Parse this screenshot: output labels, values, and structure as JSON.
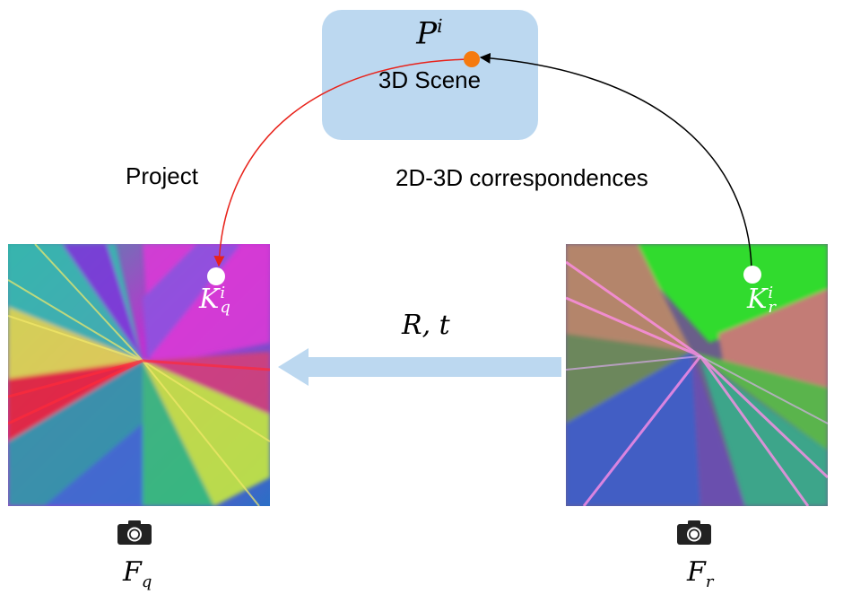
{
  "scene": {
    "label": "3D Scene",
    "point_symbol": "P",
    "point_index": "i"
  },
  "labels": {
    "project": "Project",
    "correspondences": "2D-3D correspondences",
    "pose": "R, t"
  },
  "query": {
    "keypoint_symbol": "K",
    "keypoint_sub": "q",
    "keypoint_sup": "i",
    "feature_symbol": "F",
    "feature_sub": "q",
    "camera_icon": "camera-icon"
  },
  "reference": {
    "keypoint_symbol": "K",
    "keypoint_sub": "r",
    "keypoint_sup": "i",
    "feature_symbol": "F",
    "feature_sub": "r",
    "camera_icon": "camera-icon"
  },
  "colors": {
    "scene_box": "#bcd8f0",
    "project_arrow": "#e8221a",
    "correspondence_arrow": "#000000",
    "pose_arrow": "#bcd8f0",
    "scene_point": "#f57a0f",
    "keypoint": "#ffffff"
  }
}
